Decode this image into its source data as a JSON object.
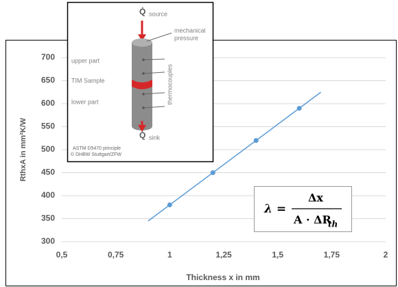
{
  "chart_data": {
    "type": "line",
    "x_label": "Thickness x in mm",
    "y_label": "RthxA in mm²K/W",
    "series": [
      {
        "color": "#5b9bd5",
        "style": "line",
        "x": [
          0.9,
          1.7
        ],
        "values": [
          345,
          625
        ]
      },
      {
        "color": "#5b9bd5",
        "style": "markers",
        "x": [
          1,
          1.2,
          1.4,
          1.6
        ],
        "values": [
          380,
          450,
          520,
          590
        ]
      }
    ],
    "xlim": [
      0.5,
      2
    ],
    "xticks": [
      {
        "value": 0.5,
        "label": "0,5"
      },
      {
        "value": 0.75,
        "label": "0,75"
      },
      1,
      {
        "value": 1.25,
        "label": "1,25"
      },
      {
        "value": 1.5,
        "label": "1,5"
      },
      {
        "value": 1.75,
        "label": "1,75"
      },
      2
    ],
    "ylim": [
      300,
      700
    ],
    "yticks": [
      300,
      350,
      400,
      450,
      500,
      550,
      600,
      650,
      700
    ],
    "grid": true,
    "formula": {
      "lhs": "λ =",
      "numerator": "Δx",
      "denominator": "A · ΔR",
      "subscript": "th"
    }
  },
  "inset": {
    "source_symbol": "Q̇",
    "source": "source",
    "pressure_1": "mechanical",
    "pressure_2": "pressure",
    "upper": "upper part",
    "sample": "TIM Sample",
    "lower": "lower part",
    "thermocouples": "thermocouples",
    "sink_symbol": "Q̇",
    "sink": "sink",
    "credit_1": "ASTM D5470 principle",
    "credit_2": "© DHBW Stuttgart/ZFW"
  }
}
